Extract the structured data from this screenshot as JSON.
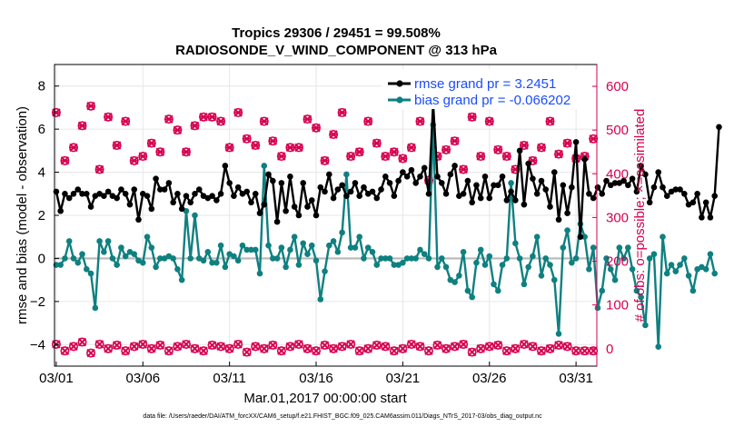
{
  "figure": {
    "title_line1": "Tropics 29306 / 29451 = 99.508%",
    "title_line2": "RADIOSONDE_V_WIND_COMPONENT @ 313 hPa",
    "xlabel": "Mar.01,2017 00:00:00 start",
    "footnote": "data file: /Users/raeder/DAI/ATM_forcXX/CAM6_setup/f.e21.FHIST_BGC.f09_025.CAM6assim.011/Diags_NTrS_2017-03/obs_diag_output.nc"
  },
  "colors": {
    "rmse": "#000000",
    "bias": "#0f8080",
    "obs": "#d6004f",
    "zero_line": "#b8b8b8",
    "legend_text": "#1a4cff"
  },
  "chart_data": {
    "type": "line",
    "x_tick_labels": [
      "03/01",
      "03/06",
      "03/11",
      "03/16",
      "03/21",
      "03/26",
      "03/31"
    ],
    "x_tick_days": [
      1,
      6,
      11,
      16,
      21,
      26,
      31
    ],
    "xlim": [
      0.9,
      32.2
    ],
    "ylabel_left": "rmse and bias (model - observation)",
    "ylim_left": [
      -5,
      9
    ],
    "yticks_left": [
      -4,
      -2,
      0,
      2,
      4,
      6,
      8
    ],
    "ylabel_right": "# of obs: o=possible; ×=assimilated",
    "ylim_right": [
      -40,
      650
    ],
    "yticks_right": [
      0,
      100,
      200,
      300,
      400,
      500,
      600
    ],
    "legend": {
      "position": "top-right",
      "rmse_label": "rmse grand pr = 3.2451",
      "bias_label": "bias grand pr = -0.066202"
    },
    "series": [
      {
        "name": "rmse",
        "x_start_day": 1.0,
        "x_step_days": 0.25,
        "values": [
          3.1,
          2.2,
          3.0,
          2.8,
          3.0,
          3.2,
          3.0,
          3.0,
          2.4,
          2.9,
          3.0,
          2.9,
          3.1,
          2.9,
          2.8,
          3.2,
          3.0,
          2.5,
          3.2,
          1.8,
          3.0,
          2.9,
          2.3,
          3.7,
          3.2,
          3.2,
          3.5,
          2.6,
          3.0,
          2.3,
          2.9,
          2.6,
          3.0,
          3.2,
          2.9,
          2.8,
          2.9,
          2.7,
          3.0,
          4.3,
          3.5,
          2.9,
          3.3,
          3.0,
          3.1,
          2.6,
          3.0,
          2.1,
          2.5,
          3.9,
          3.6,
          1.7,
          3.5,
          2.2,
          3.8,
          2.4,
          2.0,
          3.5,
          2.4,
          2.7,
          2.0,
          3.3,
          3.1,
          3.9,
          2.8,
          3.2,
          3.4,
          2.9,
          3.1,
          3.5,
          2.9,
          3.3,
          3.0,
          3.1,
          2.8,
          3.2,
          3.8,
          3.5,
          2.9,
          3.6,
          4.0,
          3.8,
          4.1,
          3.5,
          3.8,
          4.2,
          3.0,
          7.2,
          3.8,
          3.5,
          3.0,
          3.9,
          4.3,
          2.9,
          3.0,
          3.6,
          2.6,
          3.4,
          2.8,
          3.8,
          2.8,
          3.4,
          3.4,
          3.8,
          2.7,
          3.1,
          2.7,
          5.0,
          2.5,
          4.4,
          3.7,
          3.0,
          3.6,
          3.2,
          2.4,
          4.0,
          1.8,
          3.4,
          2.1,
          3.3,
          5.4,
          1.0,
          4.6,
          3.0,
          2.8,
          3.3,
          3.0,
          3.6,
          3.4,
          3.5,
          3.5,
          3.6,
          3.4,
          3.7,
          3.1,
          4.3,
          3.9,
          2.6,
          3.3,
          4.0,
          3.3,
          2.9,
          3.1,
          3.2,
          3.2,
          3.0,
          2.5,
          2.6,
          3.0,
          1.9,
          2.6,
          1.9,
          2.9,
          6.1
        ]
      },
      {
        "name": "bias",
        "x_start_day": 1.0,
        "x_step_days": 0.25,
        "values": [
          -0.3,
          -0.3,
          0.0,
          0.8,
          0.0,
          -0.2,
          0.2,
          -0.5,
          -0.7,
          -2.3,
          0.8,
          0.3,
          0.8,
          0.0,
          -0.3,
          0.5,
          0.1,
          0.3,
          0.2,
          -0.1,
          -0.2,
          1.0,
          0.5,
          -0.4,
          0.0,
          0.0,
          0.1,
          0.0,
          -0.5,
          -1.0,
          2.2,
          0.0,
          2.0,
          0.0,
          -0.1,
          0.3,
          -0.2,
          -0.2,
          0.6,
          -0.4,
          0.2,
          0.1,
          -0.1,
          0.6,
          0.4,
          0.4,
          0.4,
          -0.7,
          4.3,
          0.6,
          0.0,
          0.0,
          0.5,
          -0.4,
          0.4,
          1.0,
          -0.3,
          0.7,
          0.2,
          0.6,
          -0.1,
          -1.9,
          -0.6,
          0.6,
          0.8,
          0.3,
          1.2,
          3.9,
          0.5,
          0.5,
          1.0,
          0.0,
          0.5,
          0.3,
          -0.3,
          0.0,
          0.0,
          0.0,
          -0.3,
          -0.3,
          -0.2,
          0.0,
          0.0,
          0.0,
          0.4,
          0.2,
          0.0,
          6.2,
          -0.4,
          0.0,
          -0.4,
          -1.0,
          -1.1,
          -0.8,
          0.3,
          -1.5,
          -1.8,
          -0.2,
          0.4,
          -0.3,
          0.1,
          -1.2,
          -1.5,
          -0.3,
          0.0,
          3.5,
          0.7,
          0.0,
          -1.2,
          -0.4,
          0.1,
          1.0,
          -0.8,
          0.0,
          -0.3,
          -1.0,
          -3.5,
          0.5,
          1.3,
          -0.2,
          0.0,
          1.6,
          1.0,
          -0.5,
          0.5,
          -2.3,
          -1.5,
          0.0,
          -0.5,
          -1.0,
          0.5,
          0.0,
          0.5,
          -0.5,
          -1.5,
          -1.8,
          -3.1,
          0.0,
          0.2,
          -4.1,
          1.0,
          -0.7,
          -0.3,
          -0.6,
          -0.3,
          0.0,
          -0.8,
          -1.5,
          -0.5,
          -0.4,
          -0.5,
          0.2,
          -0.7
        ]
      },
      {
        "name": "obs_possible",
        "x_start_day": 1.0,
        "x_step_days": 0.5,
        "values": [
          540,
          430,
          460,
          510,
          555,
          410,
          530,
          465,
          520,
          430,
          440,
          470,
          450,
          525,
          500,
          450,
          510,
          530,
          530,
          520,
          460,
          540,
          480,
          465,
          520,
          475,
          440,
          460,
          460,
          525,
          505,
          430,
          490,
          540,
          440,
          450,
          520,
          470,
          440,
          450,
          435,
          460,
          520,
          385,
          440,
          455,
          475,
          410,
          530,
          440,
          520,
          455,
          440,
          410,
          465,
          430,
          460,
          520,
          445,
          470,
          435,
          440,
          480
        ]
      },
      {
        "name": "obs_assimilated",
        "x_start_day": 1.0,
        "x_step_days": 0.5,
        "values": [
          540,
          430,
          460,
          510,
          555,
          410,
          530,
          465,
          520,
          430,
          440,
          470,
          450,
          525,
          500,
          450,
          510,
          530,
          530,
          520,
          460,
          540,
          480,
          465,
          520,
          475,
          440,
          460,
          460,
          525,
          505,
          430,
          490,
          540,
          440,
          450,
          520,
          470,
          440,
          450,
          435,
          460,
          520,
          385,
          440,
          455,
          475,
          410,
          530,
          440,
          520,
          455,
          440,
          410,
          465,
          430,
          460,
          520,
          445,
          470,
          435,
          440,
          480
        ]
      },
      {
        "name": "obs_possible_low",
        "x_start_day": 1.0,
        "x_step_days": 0.5,
        "values": [
          10,
          -5,
          5,
          15,
          -10,
          10,
          0,
          8,
          -5,
          5,
          10,
          0,
          8,
          -5,
          5,
          10,
          0,
          -5,
          8,
          5,
          0,
          10,
          -8,
          5,
          0,
          8,
          -5,
          5,
          10,
          0,
          -5,
          8,
          0,
          5,
          10,
          -5,
          0,
          8,
          5,
          -5,
          0,
          10,
          5,
          -5,
          8,
          0,
          5,
          10,
          -8,
          0,
          5,
          8,
          -5,
          0,
          10,
          5,
          -5,
          0,
          8,
          5,
          -5,
          -5,
          -5
        ]
      }
    ]
  }
}
